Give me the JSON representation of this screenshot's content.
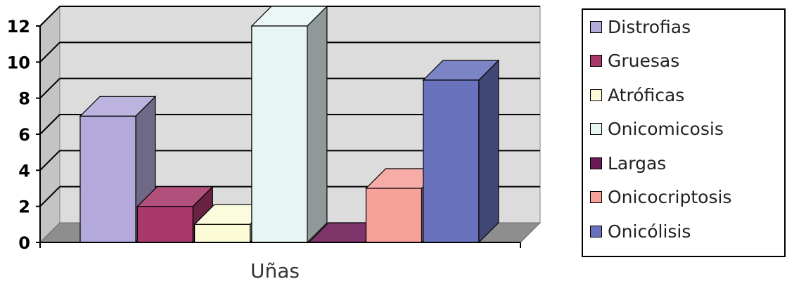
{
  "chart_data": {
    "type": "bar",
    "categories": [
      "Uñas"
    ],
    "xlabel": "Uñas",
    "ylim": [
      0,
      12
    ],
    "y_ticks": [
      0,
      2,
      4,
      6,
      8,
      10,
      12
    ],
    "grid": true,
    "legend_position": "right",
    "series": [
      {
        "name": "Distrofias",
        "values": [
          7
        ],
        "color": "#b3a9da"
      },
      {
        "name": "Gruesas",
        "values": [
          2
        ],
        "color": "#a8386a"
      },
      {
        "name": "Atróficas",
        "values": [
          1
        ],
        "color": "#fbfbd8"
      },
      {
        "name": "Onicomicosis",
        "values": [
          12
        ],
        "color": "#e8f5f5"
      },
      {
        "name": "Largas",
        "values": [
          0
        ],
        "color": "#6b1a55"
      },
      {
        "name": "Onicocriptosis",
        "values": [
          3
        ],
        "color": "#f7a19b"
      },
      {
        "name": "Onicólisis",
        "values": [
          9
        ],
        "color": "#6973bd"
      }
    ]
  }
}
